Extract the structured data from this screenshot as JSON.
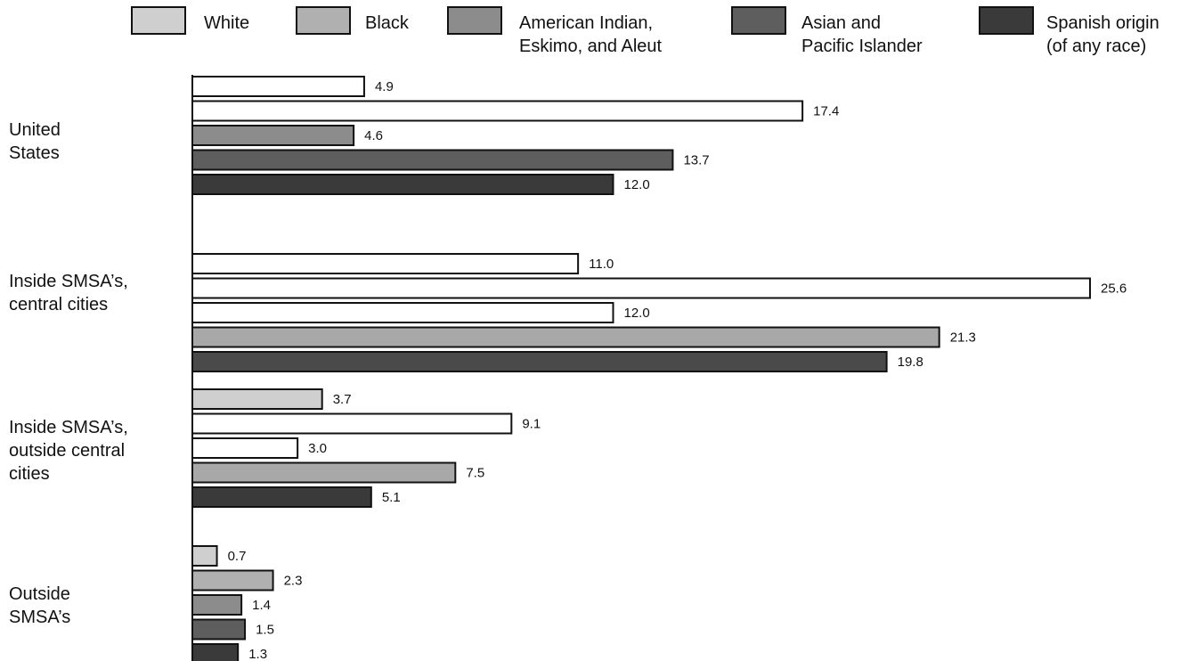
{
  "chart_data": {
    "type": "bar",
    "orientation": "horizontal",
    "title": "",
    "xlabel": "",
    "ylabel": "",
    "xlim": [
      0,
      25.6
    ],
    "grid": false,
    "legend_position": "top",
    "categories": [
      "United States",
      "Inside SMSA's, central cities",
      "Inside SMSA's, outside central cities",
      "Outside SMSA's"
    ],
    "category_display": [
      [
        "United",
        "States"
      ],
      [
        "Inside SMSA’s,",
        "central cities"
      ],
      [
        "Inside SMSA’s,",
        "outside central",
        "cities"
      ],
      [
        "Outside",
        "SMSA’s"
      ]
    ],
    "series": [
      {
        "name": "White",
        "legend_lines": [
          "White"
        ],
        "color": "#cfcfcf",
        "values": [
          4.9,
          11.0,
          3.7,
          0.7
        ]
      },
      {
        "name": "Black",
        "legend_lines": [
          "Black"
        ],
        "color": "#b0b0b0",
        "values": [
          17.4,
          25.6,
          9.1,
          2.3
        ]
      },
      {
        "name": "American Indian, Eskimo, and Aleut",
        "legend_lines": [
          "American Indian,",
          "Eskimo, and Aleut"
        ],
        "color": "#8c8c8c",
        "values": [
          4.6,
          12.0,
          3.0,
          1.4
        ]
      },
      {
        "name": "Asian and Pacific Islander",
        "legend_lines": [
          "Asian and",
          "Pacific Islander"
        ],
        "color": "#5e5e5e",
        "values": [
          13.7,
          21.3,
          7.5,
          1.5
        ]
      },
      {
        "name": "Spanish origin (of any race)",
        "legend_lines": [
          "Spanish origin",
          "(of any race)"
        ],
        "color": "#3a3a3a",
        "values": [
          12.0,
          19.8,
          5.1,
          1.3
        ]
      }
    ],
    "value_labels": [
      [
        "4.9",
        "11.0",
        "3.7",
        "0.7"
      ],
      [
        "17.4",
        "25.6",
        "9.1",
        "2.3"
      ],
      [
        "4.6",
        "12.0",
        "3.0",
        "1.4"
      ],
      [
        "13.7",
        "21.3",
        "7.5",
        "1.5"
      ],
      [
        "12.0",
        "19.8",
        "5.1",
        "1.3"
      ]
    ],
    "bar_fill_overrides": [
      {
        "series": 0,
        "category": 0,
        "color": "#ffffff"
      },
      {
        "series": 1,
        "category": 0,
        "color": "#ffffff"
      },
      {
        "series": 0,
        "category": 1,
        "color": "#ffffff"
      },
      {
        "series": 1,
        "category": 1,
        "color": "#ffffff"
      },
      {
        "series": 2,
        "category": 1,
        "color": "#ffffff"
      },
      {
        "series": 3,
        "category": 1,
        "color": "#a8a8a8"
      },
      {
        "series": 4,
        "category": 1,
        "color": "#4a4a4a"
      },
      {
        "series": 1,
        "category": 2,
        "color": "#ffffff"
      },
      {
        "series": 2,
        "category": 2,
        "color": "#ffffff"
      },
      {
        "series": 3,
        "category": 2,
        "color": "#a8a8a8"
      }
    ]
  }
}
